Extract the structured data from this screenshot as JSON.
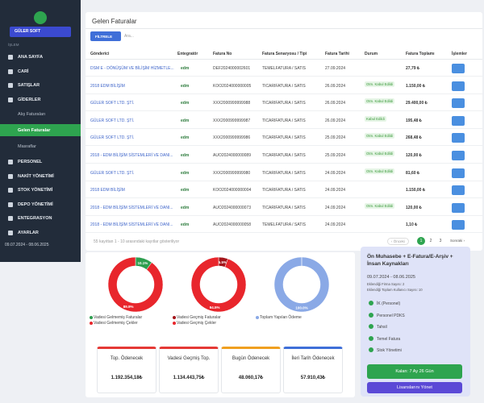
{
  "sidebar": {
    "user": "GÜLER SOFT",
    "section": "İŞLEM",
    "menu": [
      "ANA SAYFA",
      "CARİ",
      "SATIŞLAR",
      "GİDERLER",
      "PERSONEL",
      "NAKİT YÖNETİMİ",
      "STOK YÖNETİMİ",
      "DEPO YÖNETİMİ",
      "ENTEGRASYON",
      "AYARLAR"
    ],
    "submenu": [
      "Alış Faturaları",
      "Gelen Faturalar",
      "Masraflar"
    ],
    "period": "09.07.2024 - 08.06.2025"
  },
  "header": {
    "title": "Gelen Faturalar",
    "filter": "FİLTRELE",
    "search_placeholder": "Ara..."
  },
  "table": {
    "columns": [
      "Gönderici",
      "Entegratör",
      "Fatura No",
      "Fatura Senaryosu / Tipi",
      "Fatura Tarihi",
      "Durum",
      "Fatura Toplamı",
      "İşlemler"
    ],
    "rows": [
      [
        "DSM E - DÖNÜŞÜM VE BİLİŞİM HİZMETLE...",
        "edm",
        "DEF2024000002601",
        "TEMELFATURA / SATIS",
        "27.09.2024",
        null,
        "27,79 ₺"
      ],
      [
        "2018 EDM BİLİŞİM",
        "edm",
        "KOO2024000000005",
        "TICARIFATURA / SATIS",
        "26.09.2024",
        "Otm. Kabul Edildi",
        "1.150,00 ₺"
      ],
      [
        "GÜLER SOFT LTD. ŞTİ.",
        "edm",
        "XXX2000999999988",
        "TICARIFATURA / SATIS",
        "26.09.2024",
        "Otm. Kabul Edildi",
        "29.400,00 ₺"
      ],
      [
        "GÜLER SOFT LTD. ŞTİ.",
        "edm",
        "XXX2000999999987",
        "TICARIFATURA / SATIS",
        "26.09.2024",
        "Kabul Edildi",
        "195,48 ₺"
      ],
      [
        "GÜLER SOFT LTD. ŞTİ.",
        "edm",
        "XXX2000999999986",
        "TICARIFATURA / SATIS",
        "25.09.2024",
        "Otm. Kabul Edildi",
        "268,48 ₺"
      ],
      [
        "2018 - EDM BİLİŞİM SİSTEMLERİ VE DANI...",
        "edm",
        "AUO2024000000089",
        "TICARIFATURA / SATIS",
        "25.09.2024",
        "Otm. Kabul Edildi",
        "120,00 ₺"
      ],
      [
        "GÜLER SOFT LTD. ŞTİ.",
        "edm",
        "XXX2000999999980",
        "TICARIFATURA / SATIS",
        "24.09.2024",
        "Otm. Kabul Edildi",
        "81,60 ₺"
      ],
      [
        "2018 EDM BİLİŞİM",
        "edm",
        "KOO2024000000004",
        "TICARIFATURA / SATIS",
        "24.09.2024",
        null,
        "1.150,00 ₺"
      ],
      [
        "2018 - EDM BİLİŞİM SİSTEMLERİ VE DANI...",
        "edm",
        "AUO2024000000073",
        "TICARIFATURA / SATIS",
        "24.09.2024",
        "Otm. Kabul Edildi",
        "120,00 ₺"
      ],
      [
        "2018 - EDM BİLİŞİM SİSTEMLERİ VE DANI...",
        "edm",
        "AUO2024000000058",
        "TEMELFATURA / SATIS",
        "24.09.2024",
        null,
        "1,10 ₺"
      ]
    ]
  },
  "footer": {
    "info": "55 kayıttan 1 - 10 arasındaki kayıtlar gösteriliyor",
    "prev": "‹ Önceki",
    "pages": [
      "1",
      "2",
      "3"
    ],
    "next": "Sonraki ›"
  },
  "charts": [
    {
      "type": "donut",
      "segments": [
        {
          "name": "Vadesi Gelmemiş Faturalar",
          "color": "#2e9e4f",
          "value": 10.1,
          "value_label": "10.1%"
        },
        {
          "name": "Vadesi Gelmemiş Çekler",
          "color": "#e8262c",
          "value": 89.9,
          "value_label": "89.9%"
        }
      ]
    },
    {
      "type": "donut",
      "segments": [
        {
          "name": "Vadesi Geçmiş Faturalar",
          "color": "#a3141a",
          "value": 5.5,
          "value_label": "5.5%"
        },
        {
          "name": "Vadesi Geçmiş Çekler",
          "color": "#e8262c",
          "value": 94.5,
          "value_label": "94.5%"
        }
      ]
    },
    {
      "type": "donut",
      "segments": [
        {
          "name": "Toplam Yapılan Ödeme",
          "color": "#8aa9e6",
          "value": 100,
          "value_label": "100.0%"
        }
      ]
    }
  ],
  "cards": [
    {
      "title": "Top. Ödenecek",
      "amount": "1.192.354,18₺",
      "color": "#e53935"
    },
    {
      "title": "Vadesi Geçmiş Top.",
      "amount": "1.134.443,75₺",
      "color": "#e53935"
    },
    {
      "title": "Bugün Ödenecek",
      "amount": "48.060,17₺",
      "color": "#f0a020"
    },
    {
      "title": "İleri Tarih Ödenecek",
      "amount": "57.910,43₺",
      "color": "#3f6fd8"
    }
  ],
  "license": {
    "title": "Ön Muhasebe + E-Fatura/E-Arşiv + İnsan Kaynakları",
    "period": "09.07.2024 - 08.06.2025",
    "lines": [
      "Eklendiği Firma Sayısı: 2",
      "Eklendiği Toplam Kullanıcı Sayısı: 10"
    ],
    "features": [
      "İK (Personel)",
      "Personel PDKS",
      "Tahsil",
      "Temel Fatura",
      "Stok Yönetimi"
    ],
    "remaining": "Kalan: 7 Ay 26 Gün",
    "manage": "Lisanslarını Yönet"
  }
}
